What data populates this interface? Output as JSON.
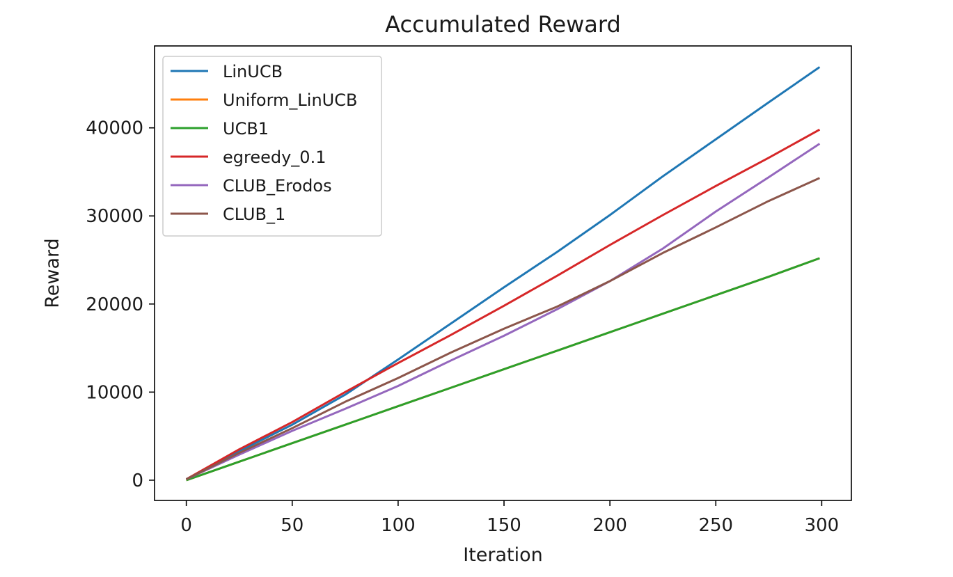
{
  "chart_data": {
    "type": "line",
    "title": "Accumulated Reward",
    "xlabel": "Iteration",
    "ylabel": "Reward",
    "xlim": [
      -15,
      314
    ],
    "ylim": [
      -2300,
      49300
    ],
    "xticks": [
      0,
      50,
      100,
      150,
      200,
      250,
      300
    ],
    "xtick_labels": [
      "0",
      "50",
      "100",
      "150",
      "200",
      "250",
      "300"
    ],
    "yticks": [
      0,
      10000,
      20000,
      30000,
      40000
    ],
    "ytick_labels": [
      "0",
      "10000",
      "20000",
      "30000",
      "40000"
    ],
    "grid": false,
    "legend_position": "upper-left",
    "x": [
      0,
      25,
      50,
      75,
      100,
      125,
      150,
      175,
      200,
      225,
      250,
      275,
      299
    ],
    "series": [
      {
        "name": "LinUCB",
        "color": "#1f77b4",
        "values": [
          100,
          3300,
          6300,
          9700,
          13700,
          17800,
          21900,
          25900,
          30100,
          34500,
          38700,
          42900,
          46900
        ]
      },
      {
        "name": "Uniform_LinUCB",
        "color": "#ff7f0e",
        "values": [
          0,
          2100,
          4200,
          6300,
          8400,
          10500,
          12600,
          14700,
          16800,
          18900,
          21000,
          23100,
          25200
        ]
      },
      {
        "name": "UCB1",
        "color": "#2ca02c",
        "values": [
          0,
          2100,
          4200,
          6300,
          8400,
          10500,
          12600,
          14700,
          16800,
          18900,
          21000,
          23100,
          25200
        ]
      },
      {
        "name": "egreedy_0.1",
        "color": "#d62728",
        "values": [
          100,
          3500,
          6600,
          10000,
          13300,
          16500,
          19800,
          23200,
          26700,
          30100,
          33400,
          36600,
          39800
        ]
      },
      {
        "name": "CLUB_Erodos",
        "color": "#9467bd",
        "values": [
          100,
          2900,
          5600,
          8100,
          10700,
          13600,
          16400,
          19400,
          22600,
          26300,
          30500,
          34400,
          38200
        ]
      },
      {
        "name": "CLUB_1",
        "color": "#8c564b",
        "values": [
          100,
          3100,
          5900,
          8900,
          11600,
          14500,
          17200,
          19700,
          22600,
          25800,
          28700,
          31700,
          34300
        ]
      }
    ]
  }
}
